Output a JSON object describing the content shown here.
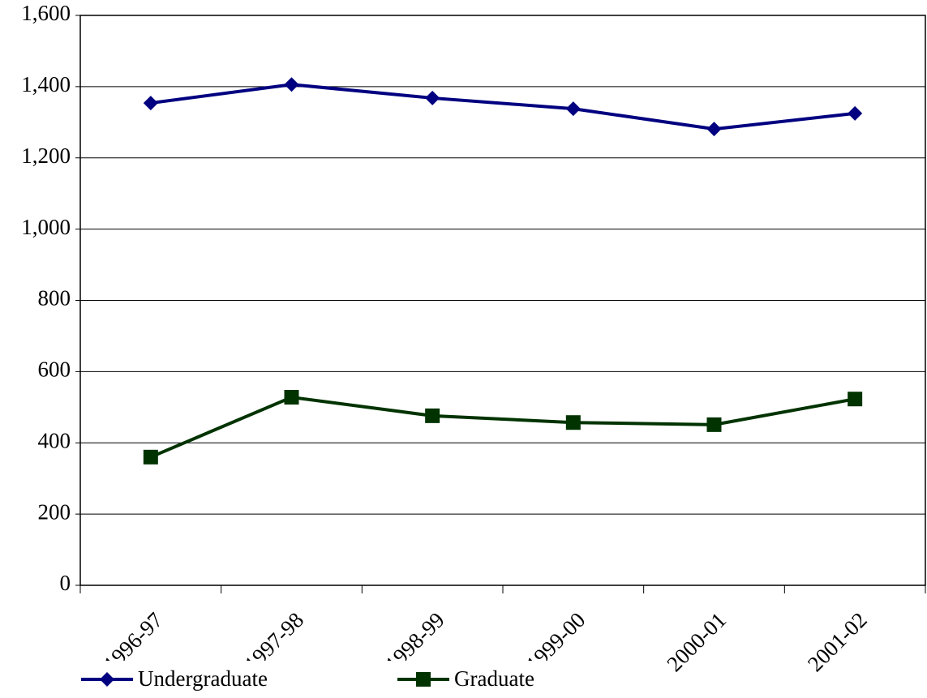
{
  "chart_data": {
    "type": "line",
    "categories": [
      "1996-97",
      "1997-98",
      "1998-99",
      "1999-00",
      "2000-01",
      "2001-02"
    ],
    "series": [
      {
        "name": "Undergraduate",
        "color": "#000080",
        "marker": "diamond",
        "values": [
          1354,
          1406,
          1368,
          1338,
          1281,
          1325
        ]
      },
      {
        "name": "Graduate",
        "color": "#003300",
        "marker": "square",
        "values": [
          360,
          528,
          476,
          457,
          451,
          523
        ]
      }
    ],
    "ylim": [
      0,
      1600
    ],
    "yticks": [
      0,
      200,
      400,
      600,
      800,
      {
        "value": 1000,
        "label": "1,000"
      },
      {
        "value": 1200,
        "label": "1,200"
      },
      {
        "value": 1400,
        "label": "1,400"
      },
      {
        "value": 1600,
        "label": "1,600"
      }
    ],
    "grid": true,
    "legend": "bottom"
  }
}
